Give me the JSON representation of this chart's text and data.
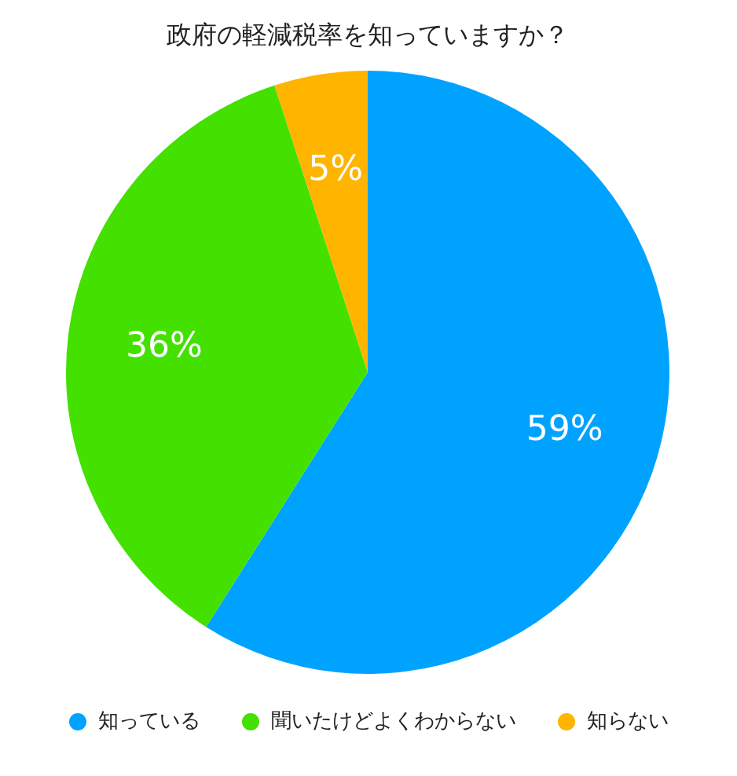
{
  "chart_data": {
    "type": "pie",
    "title": "政府の軽減税率を知っていますか？",
    "categories": [
      "知っている",
      "聞いたけどよくわからない",
      "知らない"
    ],
    "values": [
      59,
      36,
      5
    ],
    "value_labels": [
      "59%",
      "36%",
      "5%"
    ],
    "colors": [
      "#00a2ff",
      "#44e000",
      "#ffb400"
    ],
    "legend": "bottom"
  }
}
